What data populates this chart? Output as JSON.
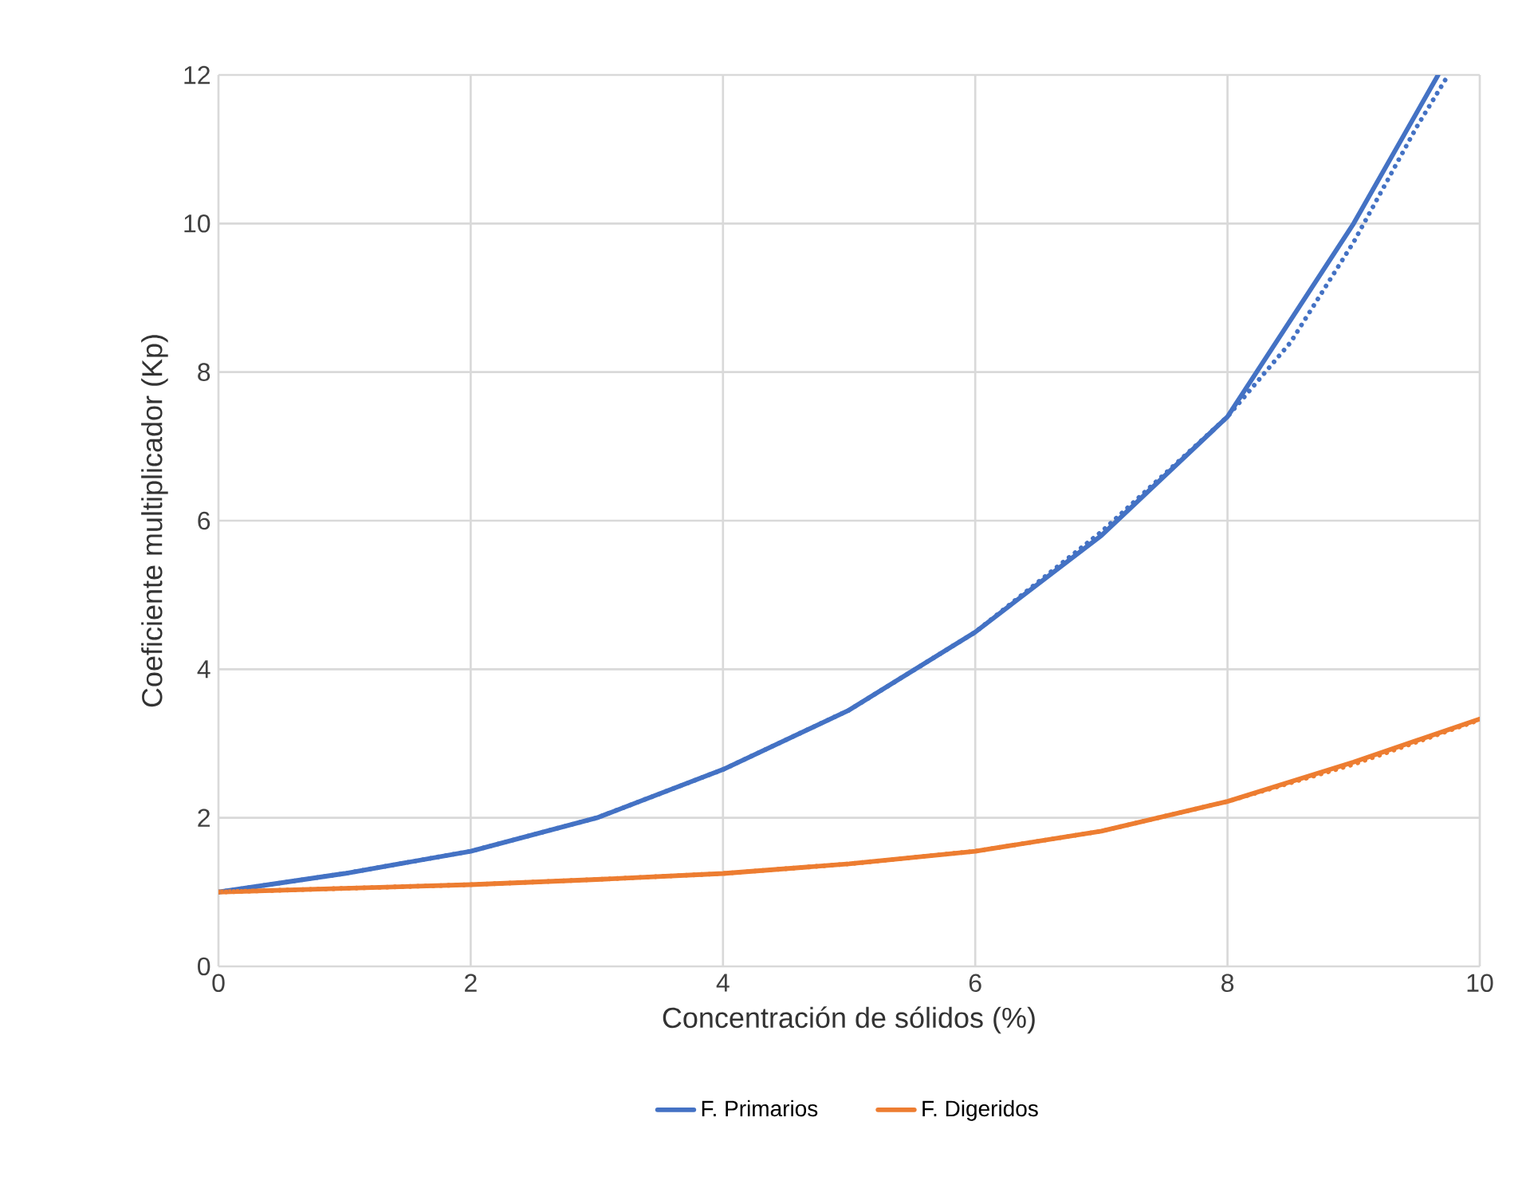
{
  "chart_data": {
    "type": "line",
    "xlabel": "Concentración de sólidos (%)",
    "ylabel": "Coeficiente multiplicador (Kp)",
    "xlim": [
      0,
      10
    ],
    "ylim": [
      0,
      12
    ],
    "xticks": [
      0,
      2,
      4,
      6,
      8,
      10
    ],
    "yticks": [
      0,
      2,
      4,
      6,
      8,
      10,
      12
    ],
    "grid": true,
    "legend": "bottom",
    "marker": "none",
    "series": [
      {
        "name": "F. Primarios",
        "color": "#4472c4",
        "line_style": "solid",
        "x": [
          0,
          1,
          2,
          3,
          4,
          5,
          6,
          7,
          8,
          9,
          9.67
        ],
        "values": [
          1,
          1.25,
          1.55,
          2.0,
          2.65,
          3.45,
          4.5,
          5.8,
          7.4,
          10.0,
          12
        ]
      },
      {
        "name": "F. Digeridos",
        "color": "#ed7d31",
        "line_style": "solid",
        "x": [
          0,
          1,
          2,
          3,
          4,
          5,
          6,
          7,
          8,
          9,
          10
        ],
        "values": [
          1,
          1.05,
          1.1,
          1.17,
          1.25,
          1.38,
          1.55,
          1.82,
          2.22,
          2.75,
          3.33
        ]
      },
      {
        "color": "#4472c4",
        "line_style": "dotted",
        "x": [
          0,
          1,
          2,
          3,
          4,
          5,
          6,
          7,
          8,
          8.5,
          9,
          9.5,
          9.75
        ],
        "values": [
          1,
          1.25,
          1.55,
          2.0,
          2.65,
          3.45,
          4.5,
          5.85,
          7.4,
          8.4,
          9.75,
          11.3,
          12
        ]
      },
      {
        "color": "#ed7d31",
        "line_style": "dotted",
        "x": [
          0,
          1,
          2,
          3,
          4,
          5,
          6,
          7,
          8,
          9,
          10
        ],
        "values": [
          1,
          1.05,
          1.1,
          1.17,
          1.25,
          1.38,
          1.55,
          1.82,
          2.22,
          2.72,
          3.32
        ]
      }
    ]
  }
}
